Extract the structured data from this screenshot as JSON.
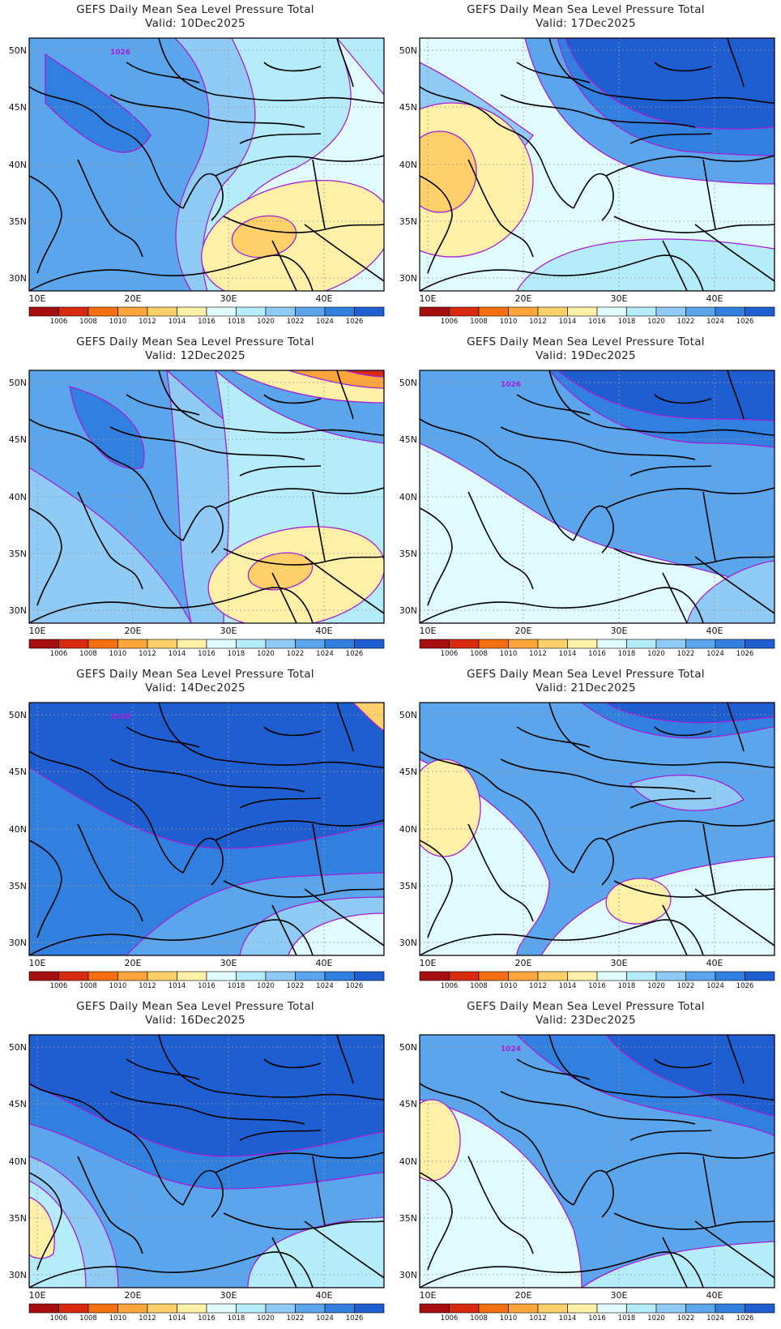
{
  "panel_title": "GEFS Daily Mean Sea Level Pressure Total",
  "lat_ticks": [
    "50N",
    "45N",
    "40N",
    "35N",
    "30N"
  ],
  "lon_ticks": [
    "10E",
    "20E",
    "30E",
    "40E"
  ],
  "colorbar": {
    "labels": [
      "1006",
      "1008",
      "1010",
      "1012",
      "1014",
      "1016",
      "1018",
      "1020",
      "1022",
      "1024",
      "1026"
    ],
    "colors": [
      "#a50f0f",
      "#d72a0e",
      "#f56f10",
      "#fba53b",
      "#fdd069",
      "#fff0a8",
      "#e0fbfe",
      "#b4ecf9",
      "#8fcbf4",
      "#5aa5ec",
      "#3180e0",
      "#1f5ed0"
    ]
  },
  "panels": [
    {
      "valid": "Valid:  10Dec2025",
      "contour_label": "1026",
      "pattern": "a"
    },
    {
      "valid": "Valid:  17Dec2025",
      "contour_label": "",
      "pattern": "e"
    },
    {
      "valid": "Valid:  12Dec2025",
      "contour_label": "",
      "pattern": "b"
    },
    {
      "valid": "Valid:  19Dec2025",
      "contour_label": "1026",
      "pattern": "f"
    },
    {
      "valid": "Valid:  14Dec2025",
      "contour_label": "1028",
      "pattern": "c"
    },
    {
      "valid": "Valid:  21Dec2025",
      "contour_label": "",
      "pattern": "g"
    },
    {
      "valid": "Valid:  16Dec2025",
      "contour_label": "",
      "pattern": "d"
    },
    {
      "valid": "Valid:  23Dec2025",
      "contour_label": "1024",
      "pattern": "h"
    }
  ]
}
